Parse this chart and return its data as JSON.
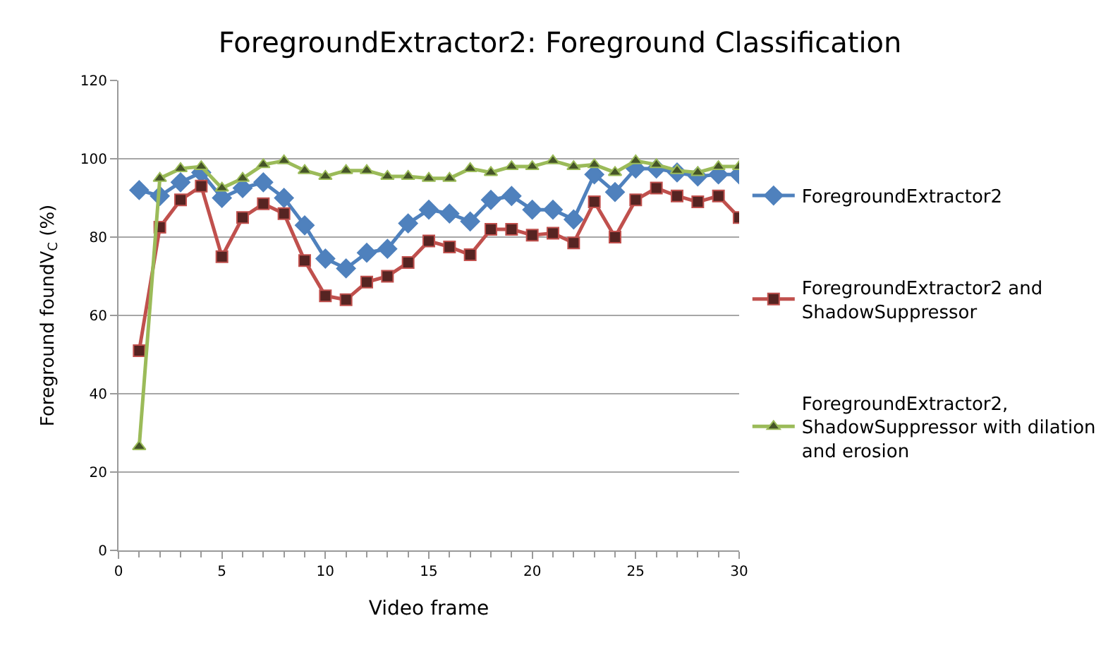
{
  "chart_data": {
    "type": "line",
    "title": "ForegroundExtractor2: Foreground Classification",
    "xlabel": "Video frame",
    "ylabel": "Foreground foundV$_{C}$ (%)",
    "x": [
      1,
      2,
      3,
      4,
      5,
      6,
      7,
      8,
      9,
      10,
      11,
      12,
      13,
      14,
      15,
      16,
      17,
      18,
      19,
      20,
      21,
      22,
      23,
      24,
      25,
      26,
      27,
      28,
      29,
      30
    ],
    "xlim": [
      0,
      30
    ],
    "xticks": [
      0,
      5,
      10,
      15,
      20,
      25,
      30
    ],
    "ylim": [
      0,
      120
    ],
    "yticks": [
      0,
      20,
      40,
      60,
      80,
      100,
      120
    ],
    "grid": "y",
    "legend": "right",
    "series": [
      {
        "name": "ForegroundExtractor2",
        "color": "#4f81bd",
        "marker": "diamond",
        "values": [
          92,
          90.5,
          94,
          96.5,
          90,
          92.5,
          94,
          90,
          83,
          74.5,
          72,
          76,
          77,
          83.5,
          87,
          86,
          84,
          89.5,
          90.5,
          87,
          87,
          84.5,
          96,
          91.5,
          97.5,
          97.5,
          96.5,
          95.5,
          96,
          96
        ]
      },
      {
        "name": "ForegroundExtractor2 and ShadowSuppressor",
        "color": "#c0504d",
        "marker": "square",
        "values": [
          51,
          82.5,
          89.5,
          93,
          75,
          85,
          88.5,
          86,
          74,
          65,
          64,
          68.5,
          70,
          73.5,
          79,
          77.5,
          75.5,
          82,
          82,
          80.5,
          81,
          78.5,
          89,
          80,
          89.5,
          92.5,
          90.5,
          89,
          90.5,
          85
        ]
      },
      {
        "name": "ForegroundExtractor2, ShadowSuppressor with dilation and erosion",
        "color": "#9bbb59",
        "marker": "triangle",
        "values": [
          26.5,
          95,
          97.5,
          98,
          92.5,
          95,
          98.5,
          99.5,
          97,
          95.5,
          97,
          97,
          95.5,
          95.5,
          95,
          95,
          97.5,
          96.5,
          98,
          98,
          99.5,
          98,
          98.5,
          96.5,
          99.5,
          98.5,
          97,
          96.5,
          98,
          98
        ]
      }
    ]
  }
}
